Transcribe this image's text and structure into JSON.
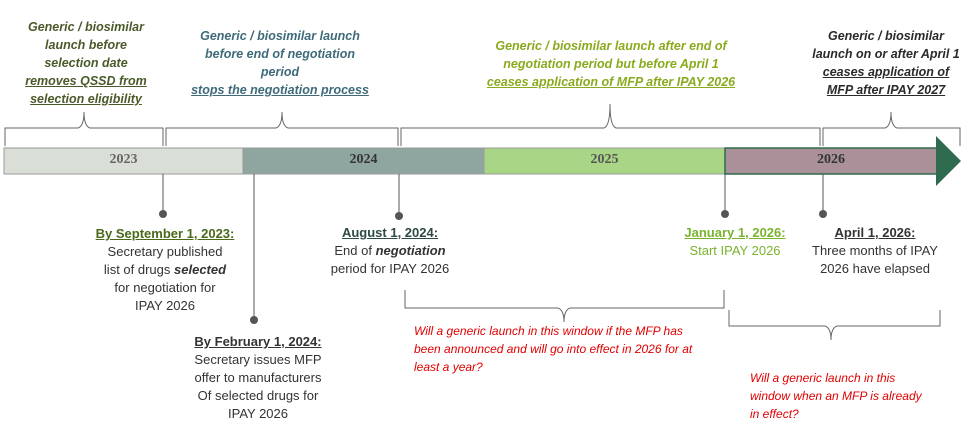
{
  "colors": {
    "h1": "#4a5a2a",
    "h2": "#3e6a7a",
    "h3": "#8aaa1e",
    "h4": "#2a2a2a",
    "bar2023": "#d9ded6",
    "bar2024": "#8fa6a0",
    "bar2025": "#a8d586",
    "bar2026": "#a99099",
    "arrow": "#2e6a4e",
    "question": "#e00000"
  },
  "headers": [
    {
      "line1": "Generic / biosimilar",
      "line2": "launch before",
      "line3": "selection date",
      "line4": "removes QSSD from",
      "line5": "selection eligibility"
    },
    {
      "line1": "Generic / biosimilar launch",
      "line2": "before end of negotiation",
      "line3": "period",
      "line4": "stops the negotiation process"
    },
    {
      "line1": "Generic / biosimilar launch after end of",
      "line2": "negotiation period but before April 1",
      "line3": "ceases application of MFP after IPAY 2026"
    },
    {
      "line1": "Generic / biosimilar",
      "line2": "launch on or after April 1",
      "line3": "ceases application of",
      "line4": "MFP after IPAY 2027"
    }
  ],
  "years": [
    "2023",
    "2024",
    "2025",
    "2026"
  ],
  "events": [
    {
      "title": "By September 1, 2023:",
      "l1": "Secretary published",
      "l2a": "list of drugs ",
      "l2b": "selected",
      "l3": "for negotiation for",
      "l4": "IPAY 2026"
    },
    {
      "title": "By February 1, 2024:",
      "l1": "Secretary issues MFP",
      "l2": "offer to manufacturers",
      "l3": "Of selected drugs for",
      "l4": "IPAY 2026"
    },
    {
      "title": "August 1, 2024:",
      "l1a": "End of ",
      "l1b": "negotiation",
      "l2": "period for IPAY 2026"
    },
    {
      "title": "January 1, 2026:",
      "l1": "Start IPAY 2026"
    },
    {
      "title": "April 1, 2026:",
      "l1": "Three months of IPAY",
      "l2": "2026 have elapsed"
    }
  ],
  "questions": [
    {
      "l1": "Will a generic launch in this window if the MFP has",
      "l2": "been announced and will go into effect in 2026 for at",
      "l3": "least a year?"
    },
    {
      "l1": "Will a generic launch in this",
      "l2": "window when an MFP is already",
      "l3": "in effect?"
    }
  ]
}
